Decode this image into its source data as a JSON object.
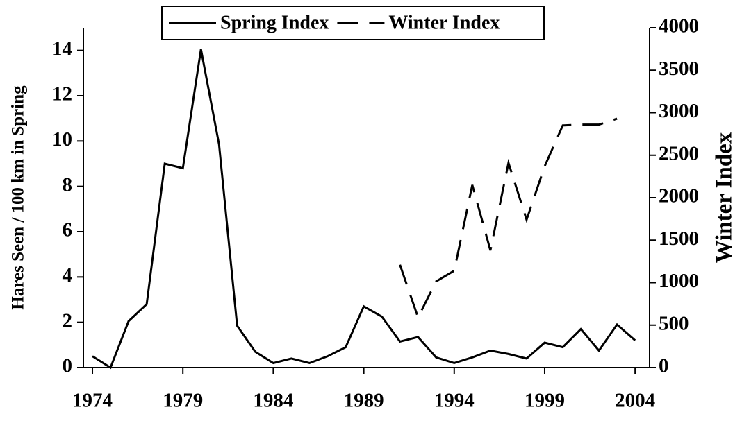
{
  "chart_data": {
    "type": "line",
    "ylabel": "Hares Seen / 100 km in Spring",
    "y2label": "Winter Index",
    "x": [
      1974,
      1975,
      1976,
      1977,
      1978,
      1979,
      1980,
      1981,
      1982,
      1983,
      1984,
      1985,
      1986,
      1987,
      1988,
      1989,
      1990,
      1991,
      1992,
      1993,
      1994,
      1995,
      1996,
      1997,
      1998,
      1999,
      2000,
      2001,
      2002,
      2003,
      2004
    ],
    "series": [
      {
        "name": "Spring Index",
        "color": "#000000",
        "dash": "solid",
        "values": [
          0.5,
          0,
          2.05,
          2.8,
          9.0,
          8.8,
          14.05,
          9.85,
          1.85,
          0.7,
          0.2,
          0.4,
          0.2,
          0.5,
          0.9,
          2.7,
          2.25,
          1.15,
          1.35,
          0.45,
          0.2,
          0.45,
          0.75,
          0.6,
          0.4,
          1.1,
          0.9,
          1.7,
          0.75,
          1.9,
          1.2
        ]
      },
      {
        "name": "Winter Index",
        "color": "#000000",
        "dash": "dashed",
        "axis": "y2",
        "values": [
          null,
          null,
          null,
          null,
          null,
          null,
          null,
          null,
          null,
          null,
          null,
          null,
          null,
          null,
          null,
          null,
          null,
          1210,
          590,
          1015,
          1140,
          2150,
          1380,
          2410,
          1740,
          2370,
          2850,
          2860,
          2860,
          2930,
          null
        ]
      }
    ],
    "xlim": [
      1973.5,
      2004.8
    ],
    "xticks": [
      1974,
      1979,
      1984,
      1989,
      1994,
      1999,
      2004
    ],
    "ylim": [
      0,
      15
    ],
    "yticks": [
      0,
      2,
      4,
      6,
      8,
      10,
      12,
      14
    ],
    "y2lim": [
      0,
      4000
    ],
    "y2ticks": [
      0,
      500,
      1000,
      1500,
      2000,
      2500,
      3000,
      3500,
      4000
    ],
    "legend": "top"
  }
}
